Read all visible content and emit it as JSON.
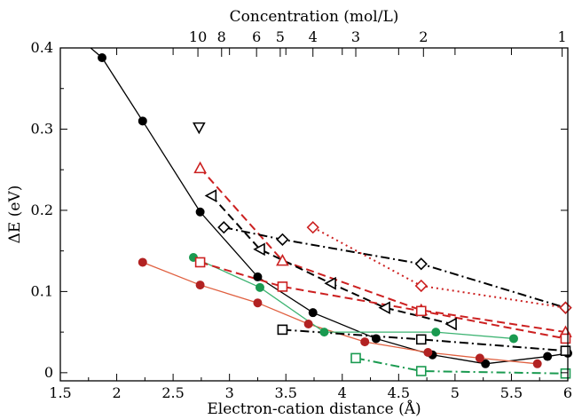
{
  "chart_data": {
    "type": "scatter",
    "title": "",
    "xlabel": "Electron-cation distance (Å)",
    "ylabel": "ΔE (eV)",
    "top_xlabel": "Concentration (mol/L)",
    "xlim": [
      1.5,
      6
    ],
    "ylim": [
      -0.01,
      0.4
    ],
    "x_ticks": [
      1.5,
      2,
      2.5,
      3,
      3.5,
      4,
      4.5,
      5,
      5.5,
      6
    ],
    "x_tick_labels": [
      "1.5",
      "2",
      "2.5",
      "3",
      "3.5",
      "4",
      "4.5",
      "5",
      "5.5",
      "6"
    ],
    "y_ticks": [
      0,
      0.1,
      0.2,
      0.3,
      0.4
    ],
    "y_tick_labels": [
      "0",
      "0.1",
      "0.2",
      "0.3",
      "0.4"
    ],
    "top_ticks": [
      {
        "label": "10",
        "x": 2.72
      },
      {
        "label": "8",
        "x": 2.93
      },
      {
        "label": "6",
        "x": 3.24
      },
      {
        "label": "5",
        "x": 3.45
      },
      {
        "label": "4",
        "x": 3.74
      },
      {
        "label": "3",
        "x": 4.12
      },
      {
        "label": "2",
        "x": 4.72
      },
      {
        "label": "1",
        "x": 5.95
      }
    ],
    "grid": false,
    "series": [
      {
        "marker": "circle",
        "filled": true,
        "color": "#000000",
        "line": "solid",
        "line_color": "#000000",
        "x": [
          1.87,
          2.23,
          2.74,
          3.25,
          3.74,
          4.3,
          4.8,
          5.27,
          5.82,
          6.0
        ],
        "y": [
          0.388,
          0.31,
          0.198,
          0.118,
          0.074,
          0.042,
          0.022,
          0.011,
          0.02,
          0.024
        ]
      },
      {
        "marker": "circle",
        "filled": true,
        "color": "#b22222",
        "line": "solid",
        "line_color": "#e06040",
        "x": [
          2.23,
          2.74,
          3.25,
          3.7,
          4.2,
          4.76,
          5.22,
          5.73
        ],
        "y": [
          0.136,
          0.108,
          0.086,
          0.06,
          0.038,
          0.025,
          0.018,
          0.011
        ]
      },
      {
        "marker": "circle",
        "filled": true,
        "color": "#1a9a50",
        "line": "solid",
        "line_color": "#3cb371",
        "x": [
          2.68,
          3.27,
          3.84,
          4.83,
          5.52
        ],
        "y": [
          0.142,
          0.105,
          0.05,
          0.05,
          0.042
        ]
      },
      {
        "marker": "triangle-down",
        "filled": false,
        "color": "#000000",
        "line": "none",
        "x": [
          2.73
        ],
        "y": [
          0.302
        ]
      },
      {
        "marker": "triangle-up",
        "filled": false,
        "color": "#cc2020",
        "line": "dashed",
        "line_color": "#cc2020",
        "x": [
          2.74,
          3.47,
          4.7,
          5.98
        ],
        "y": [
          0.252,
          0.138,
          0.077,
          0.05
        ]
      },
      {
        "marker": "triangle-left",
        "filled": false,
        "color": "#000000",
        "line": "dashed",
        "line_color": "#000000",
        "x": [
          2.84,
          3.27,
          3.9,
          4.38,
          4.97
        ],
        "y": [
          0.218,
          0.152,
          0.11,
          0.08,
          0.06
        ]
      },
      {
        "marker": "square",
        "filled": false,
        "color": "#cc2020",
        "line": "dashed",
        "line_color": "#cc2020",
        "x": [
          2.74,
          3.47,
          4.7,
          5.98
        ],
        "y": [
          0.136,
          0.106,
          0.076,
          0.042
        ]
      },
      {
        "marker": "diamond",
        "filled": false,
        "color": "#000000",
        "line": "dashdot",
        "line_color": "#000000",
        "x": [
          2.95,
          3.47,
          4.7,
          5.98
        ],
        "y": [
          0.179,
          0.164,
          0.134,
          0.08
        ]
      },
      {
        "marker": "diamond",
        "filled": false,
        "color": "#cc2020",
        "line": "dotted",
        "line_color": "#cc2020",
        "x": [
          3.74,
          4.7,
          5.98
        ],
        "y": [
          0.179,
          0.107,
          0.08
        ]
      },
      {
        "marker": "square",
        "filled": false,
        "color": "#000000",
        "line": "dashdot",
        "line_color": "#000000",
        "x": [
          3.47,
          4.7,
          5.98
        ],
        "y": [
          0.053,
          0.041,
          0.027
        ]
      },
      {
        "marker": "square",
        "filled": false,
        "color": "#1a9a50",
        "line": "dashdot",
        "line_color": "#1a9a50",
        "x": [
          4.12,
          4.7,
          5.98
        ],
        "y": [
          0.018,
          0.002,
          -0.001
        ]
      }
    ]
  }
}
